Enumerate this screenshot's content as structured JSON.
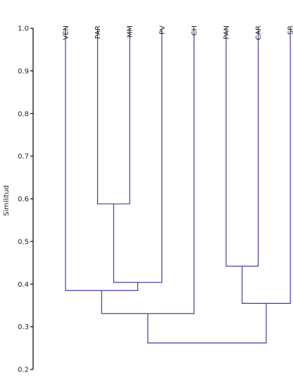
{
  "chart_data": {
    "type": "dendrogram",
    "ylabel": "Similitud",
    "ylim": [
      0.2,
      1.0
    ],
    "yticks": [
      1.0,
      0.9,
      0.8,
      0.7,
      0.6,
      0.5,
      0.4,
      0.3,
      0.2
    ],
    "ytick_labels": [
      "1.0",
      "0.9",
      "0.8",
      "0.7",
      "0.6",
      "0.5",
      "0.4",
      "0.3",
      "0.2"
    ],
    "leaves": [
      "VEN",
      "PAR",
      "MM",
      "PV",
      "CH",
      "PAN",
      "CAR",
      "SR"
    ],
    "merges": [
      {
        "left": "PAR",
        "right": "MM",
        "similarity": 0.588
      },
      {
        "left": "PAN",
        "right": "CAR",
        "similarity": 0.442
      },
      {
        "left": "PAR+MM",
        "right": "PV",
        "similarity": 0.404
      },
      {
        "left": "VEN",
        "right": "PAR+MM+PV",
        "similarity": 0.385
      },
      {
        "left": "PAN+CAR",
        "right": "SR",
        "similarity": 0.355
      },
      {
        "left": "VEN+PAR+MM+PV",
        "right": "CH",
        "similarity": 0.331
      },
      {
        "left": "VEN+PAR+MM+PV+CH",
        "right": "PAN+CAR+SR",
        "similarity": 0.262
      }
    ],
    "link_color": "#2e2e9e"
  }
}
